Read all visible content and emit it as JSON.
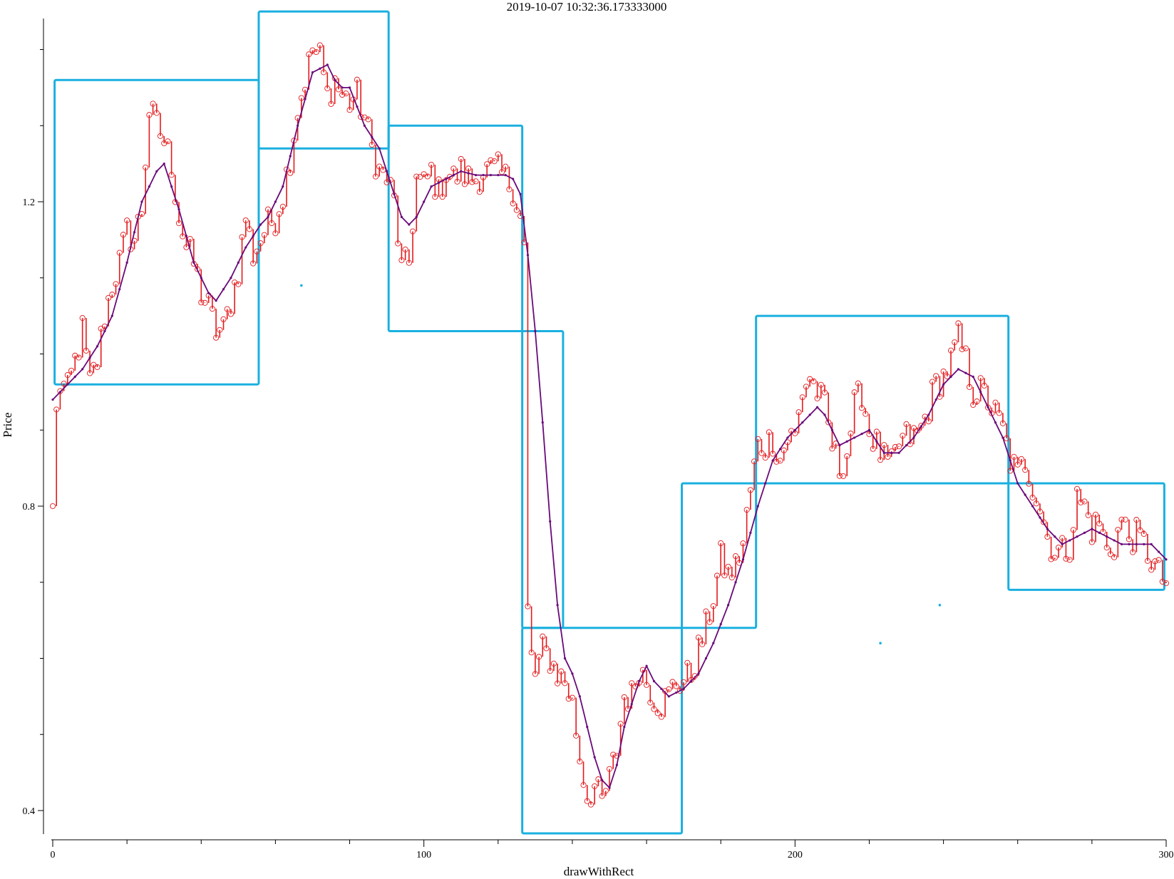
{
  "chart_data": {
    "type": "line",
    "title": "2019-10-07 10:32:36.173333000",
    "xlabel": "drawWithRect",
    "ylabel": "Price",
    "xlim": [
      0,
      300
    ],
    "ylim": [
      0.38,
      1.44
    ],
    "x_major_ticks": [
      0,
      100,
      200,
      300
    ],
    "x_minor_step": 20,
    "y_major_ticks": [
      0.4,
      0.8,
      1.2
    ],
    "y_minor_step": 0.1,
    "grid": false,
    "colors": {
      "price": "#e41a1c",
      "smooth": "#6a0a7a",
      "rect": "#1ab0e0",
      "axis": "#000000"
    },
    "price_anchors": [
      [
        0,
        0.8
      ],
      [
        1,
        0.92
      ],
      [
        2,
        0.96
      ],
      [
        4,
        0.95
      ],
      [
        6,
        0.99
      ],
      [
        8,
        1.03
      ],
      [
        10,
        0.96
      ],
      [
        12,
        0.99
      ],
      [
        14,
        1.05
      ],
      [
        16,
        1.09
      ],
      [
        18,
        1.12
      ],
      [
        20,
        1.16
      ],
      [
        22,
        1.15
      ],
      [
        24,
        1.19
      ],
      [
        26,
        1.32
      ],
      [
        28,
        1.3
      ],
      [
        30,
        1.28
      ],
      [
        32,
        1.25
      ],
      [
        34,
        1.18
      ],
      [
        36,
        1.14
      ],
      [
        38,
        1.12
      ],
      [
        40,
        1.08
      ],
      [
        42,
        1.06
      ],
      [
        44,
        1.03
      ],
      [
        46,
        1.03
      ],
      [
        48,
        1.07
      ],
      [
        50,
        1.11
      ],
      [
        52,
        1.18
      ],
      [
        54,
        1.13
      ],
      [
        56,
        1.15
      ],
      [
        58,
        1.17
      ],
      [
        60,
        1.18
      ],
      [
        62,
        1.21
      ],
      [
        64,
        1.26
      ],
      [
        66,
        1.32
      ],
      [
        68,
        1.36
      ],
      [
        70,
        1.4
      ],
      [
        72,
        1.39
      ],
      [
        74,
        1.34
      ],
      [
        76,
        1.36
      ],
      [
        78,
        1.34
      ],
      [
        80,
        1.33
      ],
      [
        82,
        1.34
      ],
      [
        84,
        1.31
      ],
      [
        86,
        1.27
      ],
      [
        88,
        1.24
      ],
      [
        90,
        1.23
      ],
      [
        92,
        1.2
      ],
      [
        94,
        1.11
      ],
      [
        96,
        1.12
      ],
      [
        98,
        1.23
      ],
      [
        100,
        1.22
      ],
      [
        102,
        1.24
      ],
      [
        104,
        1.21
      ],
      [
        106,
        1.24
      ],
      [
        108,
        1.23
      ],
      [
        110,
        1.24
      ],
      [
        112,
        1.23
      ],
      [
        114,
        1.23
      ],
      [
        116,
        1.24
      ],
      [
        118,
        1.24
      ],
      [
        120,
        1.24
      ],
      [
        122,
        1.23
      ],
      [
        124,
        1.22
      ],
      [
        126,
        1.18
      ],
      [
        127,
        1.14
      ],
      [
        127.5,
        0.8
      ],
      [
        128,
        0.66
      ],
      [
        129,
        0.6
      ],
      [
        130,
        0.58
      ],
      [
        132,
        0.61
      ],
      [
        134,
        0.6
      ],
      [
        136,
        0.58
      ],
      [
        138,
        0.57
      ],
      [
        140,
        0.54
      ],
      [
        142,
        0.47
      ],
      [
        144,
        0.42
      ],
      [
        146,
        0.43
      ],
      [
        148,
        0.41
      ],
      [
        150,
        0.44
      ],
      [
        152,
        0.48
      ],
      [
        154,
        0.55
      ],
      [
        156,
        0.55
      ],
      [
        158,
        0.59
      ],
      [
        160,
        0.57
      ],
      [
        162,
        0.55
      ],
      [
        164,
        0.54
      ],
      [
        166,
        0.55
      ],
      [
        168,
        0.57
      ],
      [
        170,
        0.57
      ],
      [
        172,
        0.58
      ],
      [
        174,
        0.61
      ],
      [
        176,
        0.64
      ],
      [
        178,
        0.68
      ],
      [
        180,
        0.73
      ],
      [
        182,
        0.71
      ],
      [
        184,
        0.72
      ],
      [
        186,
        0.75
      ],
      [
        188,
        0.82
      ],
      [
        190,
        0.88
      ],
      [
        192,
        0.88
      ],
      [
        194,
        0.89
      ],
      [
        196,
        0.86
      ],
      [
        198,
        0.89
      ],
      [
        200,
        0.89
      ],
      [
        202,
        0.95
      ],
      [
        204,
        0.97
      ],
      [
        206,
        0.95
      ],
      [
        208,
        0.93
      ],
      [
        210,
        0.88
      ],
      [
        212,
        0.85
      ],
      [
        214,
        0.87
      ],
      [
        216,
        0.93
      ],
      [
        218,
        0.95
      ],
      [
        220,
        0.9
      ],
      [
        222,
        0.88
      ],
      [
        224,
        0.86
      ],
      [
        226,
        0.85
      ],
      [
        228,
        0.88
      ],
      [
        230,
        0.89
      ],
      [
        232,
        0.89
      ],
      [
        234,
        0.9
      ],
      [
        236,
        0.93
      ],
      [
        238,
        0.96
      ],
      [
        240,
        0.97
      ],
      [
        242,
        0.99
      ],
      [
        244,
        1.02
      ],
      [
        246,
        0.99
      ],
      [
        248,
        0.95
      ],
      [
        250,
        0.95
      ],
      [
        252,
        0.94
      ],
      [
        254,
        0.92
      ],
      [
        256,
        0.9
      ],
      [
        258,
        0.86
      ],
      [
        260,
        0.84
      ],
      [
        262,
        0.86
      ],
      [
        264,
        0.83
      ],
      [
        266,
        0.8
      ],
      [
        268,
        0.76
      ],
      [
        270,
        0.74
      ],
      [
        272,
        0.74
      ],
      [
        274,
        0.75
      ],
      [
        276,
        0.81
      ],
      [
        278,
        0.8
      ],
      [
        280,
        0.77
      ],
      [
        282,
        0.78
      ],
      [
        284,
        0.74
      ],
      [
        286,
        0.75
      ],
      [
        288,
        0.78
      ],
      [
        290,
        0.76
      ],
      [
        292,
        0.76
      ],
      [
        294,
        0.75
      ],
      [
        296,
        0.73
      ],
      [
        298,
        0.71
      ],
      [
        300,
        0.7
      ]
    ],
    "smooth_anchors": [
      [
        0,
        0.94
      ],
      [
        4,
        0.96
      ],
      [
        8,
        0.98
      ],
      [
        12,
        1.01
      ],
      [
        16,
        1.05
      ],
      [
        20,
        1.12
      ],
      [
        24,
        1.2
      ],
      [
        28,
        1.24
      ],
      [
        30,
        1.25
      ],
      [
        34,
        1.19
      ],
      [
        38,
        1.12
      ],
      [
        42,
        1.08
      ],
      [
        44,
        1.07
      ],
      [
        48,
        1.1
      ],
      [
        52,
        1.14
      ],
      [
        56,
        1.17
      ],
      [
        58,
        1.18
      ],
      [
        62,
        1.22
      ],
      [
        66,
        1.3
      ],
      [
        70,
        1.37
      ],
      [
        74,
        1.38
      ],
      [
        76,
        1.36
      ],
      [
        78,
        1.35
      ],
      [
        80,
        1.35
      ],
      [
        84,
        1.3
      ],
      [
        88,
        1.27
      ],
      [
        90,
        1.24
      ],
      [
        94,
        1.18
      ],
      [
        96,
        1.17
      ],
      [
        98,
        1.18
      ],
      [
        102,
        1.22
      ],
      [
        106,
        1.23
      ],
      [
        110,
        1.24
      ],
      [
        114,
        1.235
      ],
      [
        118,
        1.235
      ],
      [
        122,
        1.235
      ],
      [
        124,
        1.23
      ],
      [
        126,
        1.21
      ],
      [
        128,
        1.13
      ],
      [
        130,
        1.03
      ],
      [
        132,
        0.91
      ],
      [
        134,
        0.78
      ],
      [
        136,
        0.67
      ],
      [
        138,
        0.6
      ],
      [
        140,
        0.58
      ],
      [
        142,
        0.55
      ],
      [
        144,
        0.51
      ],
      [
        146,
        0.47
      ],
      [
        148,
        0.44
      ],
      [
        150,
        0.43
      ],
      [
        152,
        0.46
      ],
      [
        154,
        0.51
      ],
      [
        156,
        0.54
      ],
      [
        158,
        0.57
      ],
      [
        160,
        0.59
      ],
      [
        162,
        0.57
      ],
      [
        164,
        0.56
      ],
      [
        166,
        0.55
      ],
      [
        168,
        0.555
      ],
      [
        170,
        0.56
      ],
      [
        174,
        0.58
      ],
      [
        178,
        0.62
      ],
      [
        182,
        0.67
      ],
      [
        186,
        0.73
      ],
      [
        190,
        0.8
      ],
      [
        194,
        0.86
      ],
      [
        198,
        0.89
      ],
      [
        202,
        0.91
      ],
      [
        206,
        0.93
      ],
      [
        208,
        0.92
      ],
      [
        212,
        0.88
      ],
      [
        216,
        0.89
      ],
      [
        220,
        0.9
      ],
      [
        224,
        0.87
      ],
      [
        228,
        0.87
      ],
      [
        232,
        0.89
      ],
      [
        236,
        0.92
      ],
      [
        240,
        0.96
      ],
      [
        244,
        0.98
      ],
      [
        248,
        0.97
      ],
      [
        252,
        0.93
      ],
      [
        256,
        0.89
      ],
      [
        260,
        0.83
      ],
      [
        264,
        0.8
      ],
      [
        268,
        0.77
      ],
      [
        272,
        0.75
      ],
      [
        276,
        0.76
      ],
      [
        280,
        0.77
      ],
      [
        284,
        0.76
      ],
      [
        288,
        0.75
      ],
      [
        292,
        0.75
      ],
      [
        296,
        0.75
      ],
      [
        300,
        0.73
      ]
    ],
    "rectangles": [
      {
        "x0": 0.5,
        "x1": 55.5,
        "y0": 0.96,
        "y1": 1.36
      },
      {
        "x0": 55.5,
        "x1": 90.5,
        "y0": 1.27,
        "y1": 1.45
      },
      {
        "x0": 90.5,
        "x1": 126.5,
        "y0": 1.03,
        "y1": 1.3
      },
      {
        "x0": 126.5,
        "x1": 137.5,
        "y0": 0.64,
        "y1": 1.03
      },
      {
        "x0": 126.5,
        "x1": 169.5,
        "y0": 0.37,
        "y1": 0.64
      },
      {
        "x0": 169.5,
        "x1": 189.5,
        "y0": 0.64,
        "y1": 0.83
      },
      {
        "x0": 189.5,
        "x1": 257.5,
        "y0": 0.83,
        "y1": 1.05
      },
      {
        "x0": 257.5,
        "x1": 299.5,
        "y0": 0.69,
        "y1": 0.83
      }
    ],
    "stray_points": [
      {
        "x": 67,
        "y": 1.09
      },
      {
        "x": 239,
        "y": 0.67
      },
      {
        "x": 223,
        "y": 0.62
      }
    ]
  }
}
